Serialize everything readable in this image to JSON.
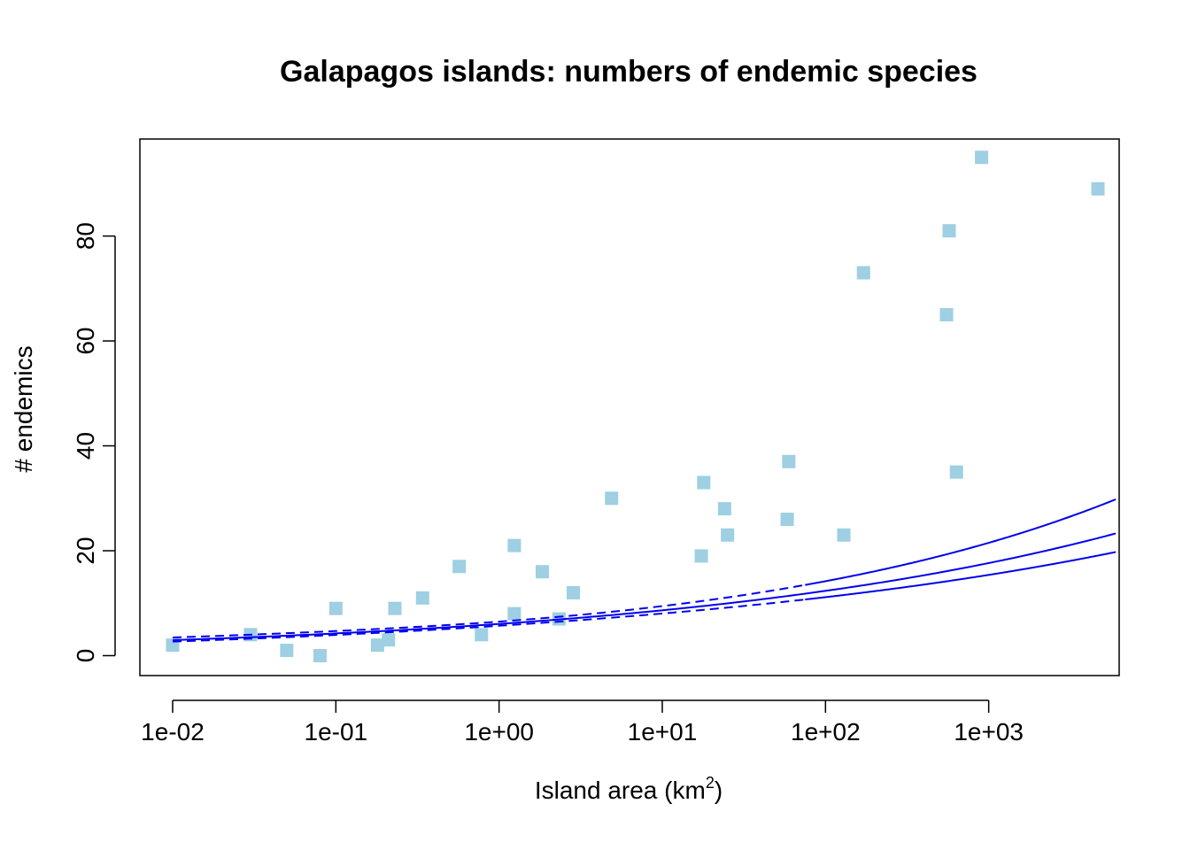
{
  "chart_data": {
    "type": "scatter",
    "title": "Galapagos islands: numbers of endemic species",
    "xlabel_main": "Island area (km",
    "xlabel_sup": "2",
    "xlabel_end": ")",
    "ylabel": "# endemics",
    "x_scale": "log10",
    "xlim": [
      0.0063,
      6300
    ],
    "ylim": [
      -3.8,
      98.5
    ],
    "x_ticks": [
      0.01,
      0.1,
      1,
      10,
      100,
      1000
    ],
    "x_tick_labels": [
      "1e-02",
      "1e-01",
      "1e+00",
      "1e+01",
      "1e+02",
      "1e+03"
    ],
    "y_ticks": [
      0,
      20,
      40,
      60,
      80
    ],
    "y_tick_labels": [
      "0",
      "20",
      "40",
      "60",
      "80"
    ],
    "grid": false,
    "legend": "none",
    "colors": {
      "points": "#9ecfe2",
      "fit": "#0000ee",
      "axes": "#000000"
    },
    "points": [
      {
        "x": 0.01,
        "y": 2
      },
      {
        "x": 0.03,
        "y": 4
      },
      {
        "x": 0.05,
        "y": 1
      },
      {
        "x": 0.08,
        "y": 0
      },
      {
        "x": 0.1,
        "y": 9
      },
      {
        "x": 0.18,
        "y": 2
      },
      {
        "x": 0.21,
        "y": 3
      },
      {
        "x": 0.23,
        "y": 9
      },
      {
        "x": 0.34,
        "y": 11
      },
      {
        "x": 0.57,
        "y": 17
      },
      {
        "x": 0.78,
        "y": 4
      },
      {
        "x": 1.24,
        "y": 8
      },
      {
        "x": 1.24,
        "y": 21
      },
      {
        "x": 1.84,
        "y": 16
      },
      {
        "x": 2.33,
        "y": 7
      },
      {
        "x": 2.85,
        "y": 12
      },
      {
        "x": 4.89,
        "y": 30
      },
      {
        "x": 17.35,
        "y": 19
      },
      {
        "x": 17.95,
        "y": 33
      },
      {
        "x": 24.08,
        "y": 28
      },
      {
        "x": 25.09,
        "y": 23
      },
      {
        "x": 58.27,
        "y": 26
      },
      {
        "x": 59.56,
        "y": 37
      },
      {
        "x": 129.49,
        "y": 23
      },
      {
        "x": 170.92,
        "y": 73
      },
      {
        "x": 551.62,
        "y": 65
      },
      {
        "x": 572.33,
        "y": 81
      },
      {
        "x": 634.49,
        "y": 35
      },
      {
        "x": 903.82,
        "y": 95
      },
      {
        "x": 4669.32,
        "y": 89
      }
    ],
    "fit": {
      "model": "Poisson log-linear",
      "intercept_log": 1.8,
      "slope_log": 0.155,
      "upper_ci_offset": [
        0.27,
        0.07,
        0.16
      ],
      "lower_ci_offset": [
        -0.17,
        -0.06,
        -0.09
      ]
    }
  }
}
